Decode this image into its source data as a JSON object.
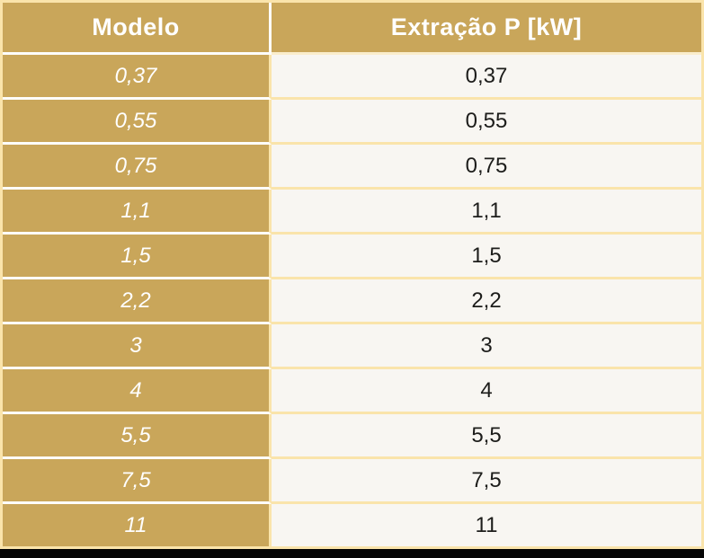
{
  "colors": {
    "gold": "#C9A65A",
    "cream_border": "#FAE4AB",
    "light_cream_border": "#FAEDCC",
    "white_border": "#FDFDFB",
    "cell_bg": "#F8F6F2",
    "header_text": "#FFFFFF",
    "body_text": "#1D1D1B",
    "bottom_bar": "#050505"
  },
  "table": {
    "header": {
      "modelo": "Modelo",
      "extracao": "Extração P [kW]"
    },
    "rows": [
      {
        "modelo": "0,37",
        "extracao": "0,37"
      },
      {
        "modelo": "0,55",
        "extracao": "0,55"
      },
      {
        "modelo": "0,75",
        "extracao": "0,75"
      },
      {
        "modelo": "1,1",
        "extracao": "1,1"
      },
      {
        "modelo": "1,5",
        "extracao": "1,5"
      },
      {
        "modelo": "2,2",
        "extracao": "2,2"
      },
      {
        "modelo": "3",
        "extracao": "3"
      },
      {
        "modelo": "4",
        "extracao": "4"
      },
      {
        "modelo": "5,5",
        "extracao": "5,5"
      },
      {
        "modelo": "7,5",
        "extracao": "7,5"
      },
      {
        "modelo": "11",
        "extracao": "11"
      }
    ]
  }
}
